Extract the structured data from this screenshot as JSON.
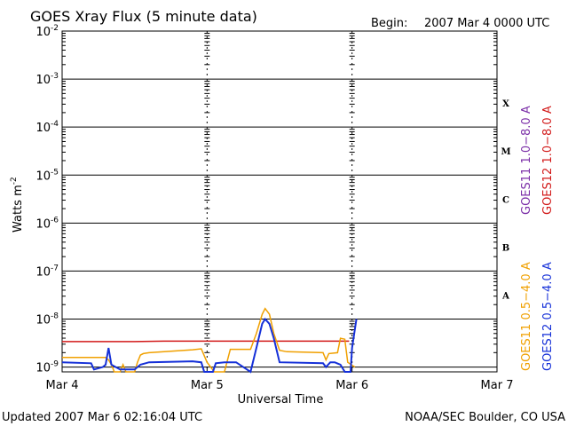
{
  "header": {
    "title": "GOES Xray Flux (5 minute data)",
    "begin_label": "Begin:",
    "begin_value": "2007 Mar 4 0000 UTC"
  },
  "footer": {
    "updated": "Updated 2007 Mar  6 02:16:04 UTC",
    "credit": "NOAA/SEC Boulder, CO USA"
  },
  "colors": {
    "goes11_long": "#7b2fa8",
    "goes12_long": "#d21a1a",
    "goes11_short": "#f0a000",
    "goes12_short": "#1530d8"
  },
  "chart_data": {
    "type": "line",
    "title": "GOES Xray Flux (5 minute data)",
    "xlabel": "Universal Time",
    "ylabel": "Watts m",
    "ylabel_sup": "-2",
    "yscale": "log",
    "xlim": [
      0,
      3
    ],
    "ylim": [
      -9.1,
      -2
    ],
    "x_unit_note": "days since 2007 Mar 4 0000 UTC",
    "x_ticks": [
      {
        "x": 0,
        "label": "Mar 4"
      },
      {
        "x": 1,
        "label": "Mar 5"
      },
      {
        "x": 2,
        "label": "Mar 6"
      },
      {
        "x": 3,
        "label": "Mar 7"
      }
    ],
    "y_ticks": [
      {
        "exp": -2,
        "base": "10",
        "sup": "-2"
      },
      {
        "exp": -3,
        "base": "10",
        "sup": "-3"
      },
      {
        "exp": -4,
        "base": "10",
        "sup": "-4"
      },
      {
        "exp": -5,
        "base": "10",
        "sup": "-5"
      },
      {
        "exp": -6,
        "base": "10",
        "sup": "-6"
      },
      {
        "exp": -7,
        "base": "10",
        "sup": "-7"
      },
      {
        "exp": -8,
        "base": "10",
        "sup": "-8"
      },
      {
        "exp": -9,
        "base": "10",
        "sup": "-9"
      }
    ],
    "flare_classes": [
      {
        "label": "X",
        "exp": -3.5
      },
      {
        "label": "M",
        "exp": -4.5
      },
      {
        "label": "C",
        "exp": -5.5
      },
      {
        "label": "B",
        "exp": -6.5
      },
      {
        "label": "A",
        "exp": -7.5
      }
    ],
    "legend": [
      {
        "text": "GOES11 1.0−8.0 A",
        "color": "#7b2fa8",
        "group": "long"
      },
      {
        "text": "GOES12 1.0−8.0 A",
        "color": "#d21a1a",
        "group": "long"
      },
      {
        "text": "GOES11 0.5−4.0 A",
        "color": "#f0a000",
        "group": "short"
      },
      {
        "text": "GOES12 0.5−4.0 A",
        "color": "#1530d8",
        "group": "short"
      }
    ],
    "series": [
      {
        "name": "GOES12 1.0−8.0 A",
        "color": "#d21a1a",
        "points": [
          [
            0.0,
            -8.47
          ],
          [
            0.5,
            -8.47
          ],
          [
            0.7,
            -8.46
          ],
          [
            1.0,
            -8.46
          ],
          [
            1.5,
            -8.46
          ],
          [
            1.98,
            -8.46
          ]
        ]
      },
      {
        "name": "GOES11 0.5−4.0 A",
        "color": "#f0a000",
        "points": [
          [
            0.0,
            -8.8
          ],
          [
            0.3,
            -8.8
          ],
          [
            0.32,
            -8.85
          ],
          [
            0.34,
            -8.95
          ],
          [
            0.36,
            -9.1
          ],
          [
            0.4,
            -9.1
          ],
          [
            0.42,
            -8.95
          ],
          [
            0.44,
            -9.1
          ],
          [
            0.5,
            -9.1
          ],
          [
            0.52,
            -8.9
          ],
          [
            0.54,
            -8.75
          ],
          [
            0.56,
            -8.72
          ],
          [
            0.6,
            -8.7
          ],
          [
            0.9,
            -8.64
          ],
          [
            0.96,
            -8.62
          ],
          [
            1.0,
            -8.9
          ],
          [
            1.05,
            -9.1
          ],
          [
            1.12,
            -9.1
          ],
          [
            1.16,
            -8.63
          ],
          [
            1.3,
            -8.63
          ],
          [
            1.34,
            -8.3
          ],
          [
            1.38,
            -7.9
          ],
          [
            1.4,
            -7.78
          ],
          [
            1.43,
            -7.9
          ],
          [
            1.46,
            -8.3
          ],
          [
            1.5,
            -8.65
          ],
          [
            1.55,
            -8.68
          ],
          [
            1.8,
            -8.7
          ],
          [
            1.82,
            -8.85
          ],
          [
            1.84,
            -8.72
          ],
          [
            1.9,
            -8.7
          ],
          [
            1.92,
            -8.4
          ],
          [
            1.95,
            -8.42
          ],
          [
            1.97,
            -8.9
          ],
          [
            2.02,
            -9.0
          ]
        ]
      },
      {
        "name": "GOES12 0.5−4.0 A",
        "color": "#1530d8",
        "points": [
          [
            0.0,
            -8.9
          ],
          [
            0.2,
            -8.92
          ],
          [
            0.22,
            -9.05
          ],
          [
            0.28,
            -9.0
          ],
          [
            0.3,
            -8.95
          ],
          [
            0.32,
            -8.6
          ],
          [
            0.34,
            -8.95
          ],
          [
            0.4,
            -9.05
          ],
          [
            0.5,
            -9.05
          ],
          [
            0.54,
            -8.95
          ],
          [
            0.6,
            -8.9
          ],
          [
            0.9,
            -8.88
          ],
          [
            0.96,
            -8.9
          ],
          [
            0.98,
            -9.1
          ],
          [
            1.04,
            -9.1
          ],
          [
            1.06,
            -8.92
          ],
          [
            1.12,
            -8.9
          ],
          [
            1.2,
            -8.9
          ],
          [
            1.3,
            -9.1
          ],
          [
            1.34,
            -8.6
          ],
          [
            1.38,
            -8.1
          ],
          [
            1.4,
            -8.0
          ],
          [
            1.43,
            -8.1
          ],
          [
            1.46,
            -8.4
          ],
          [
            1.5,
            -8.9
          ],
          [
            1.8,
            -8.92
          ],
          [
            1.82,
            -9.0
          ],
          [
            1.85,
            -8.9
          ],
          [
            1.88,
            -8.9
          ],
          [
            1.92,
            -8.95
          ],
          [
            1.95,
            -9.1
          ],
          [
            1.99,
            -9.1
          ],
          [
            2.0,
            -8.6
          ],
          [
            2.03,
            -8.0
          ]
        ]
      }
    ],
    "grid": "horizontal lines at each decade; dashed verticals at day boundaries"
  }
}
